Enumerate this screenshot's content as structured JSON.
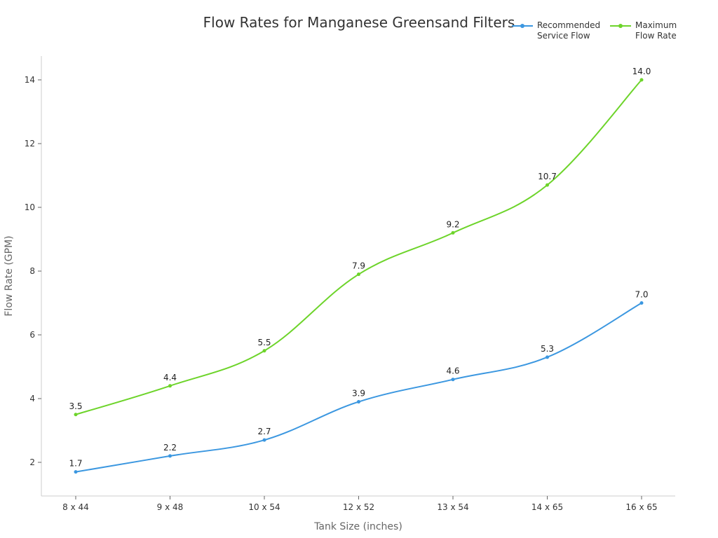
{
  "chart_data": {
    "type": "line",
    "title": "Flow Rates for Manganese Greensand Filters",
    "xlabel": "Tank Size (inches)",
    "ylabel": "Flow Rate (GPM)",
    "categories": [
      "8 x 44",
      "9 x 48",
      "10 x 54",
      "12 x 52",
      "13 x 54",
      "14 x 65",
      "16 x 65"
    ],
    "series": [
      {
        "name": "Recommended Service Flow",
        "legend_label": "Recommended\nService Flow",
        "color": "#3b97e0",
        "values": [
          1.7,
          2.2,
          2.7,
          3.9,
          4.6,
          5.3,
          7.0
        ]
      },
      {
        "name": "Maximum Flow Rate",
        "legend_label": "Maximum\nFlow Rate",
        "color": "#6dd42a",
        "values": [
          3.5,
          4.4,
          5.5,
          7.9,
          9.2,
          10.7,
          14.0
        ]
      }
    ],
    "yticks": [
      2,
      4,
      6,
      8,
      10,
      12,
      14
    ],
    "ylim": [
      1,
      14.7
    ],
    "grid": false,
    "legend_position": "top-right"
  }
}
